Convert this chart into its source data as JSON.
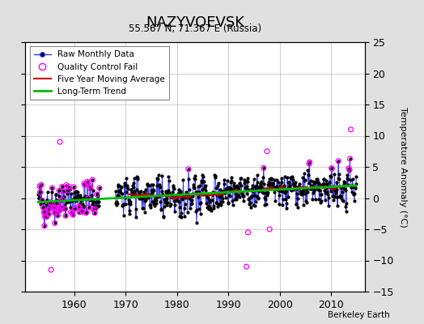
{
  "title": "NAZYVOEVSK",
  "subtitle": "55.567 N, 71.367 E (Russia)",
  "credit": "Berkeley Earth",
  "ylabel": "Temperature Anomaly (°C)",
  "ylim": [
    -15,
    25
  ],
  "xlim": [
    1950.5,
    2016.5
  ],
  "yticks": [
    -15,
    -10,
    -5,
    0,
    5,
    10,
    15,
    20,
    25
  ],
  "xticks": [
    1960,
    1970,
    1980,
    1990,
    2000,
    2010
  ],
  "bg_color": "#e0e0e0",
  "plot_bg_color": "#ffffff",
  "raw_line_color": "#3333ff",
  "raw_marker_color": "#000000",
  "qc_fail_color": "#ff00ff",
  "moving_avg_color": "#cc0000",
  "trend_color": "#00bb00",
  "seed": 42
}
